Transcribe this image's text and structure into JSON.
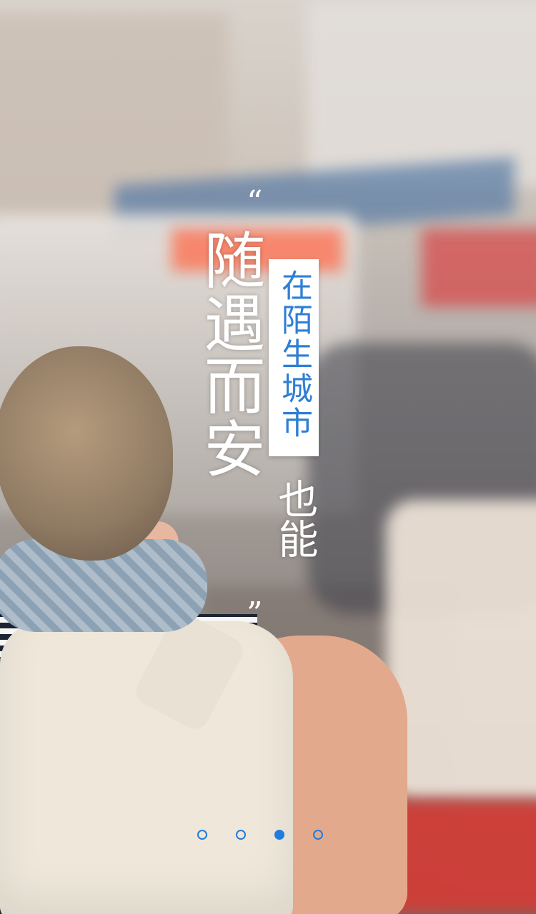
{
  "quote_marks": {
    "open": "“",
    "close": "”"
  },
  "headline": "随遇而安",
  "subtitle": "在陌生城市",
  "tail": "也能",
  "pager": {
    "count": 4,
    "active_index": 2,
    "accent_color": "#1f7ce0"
  }
}
